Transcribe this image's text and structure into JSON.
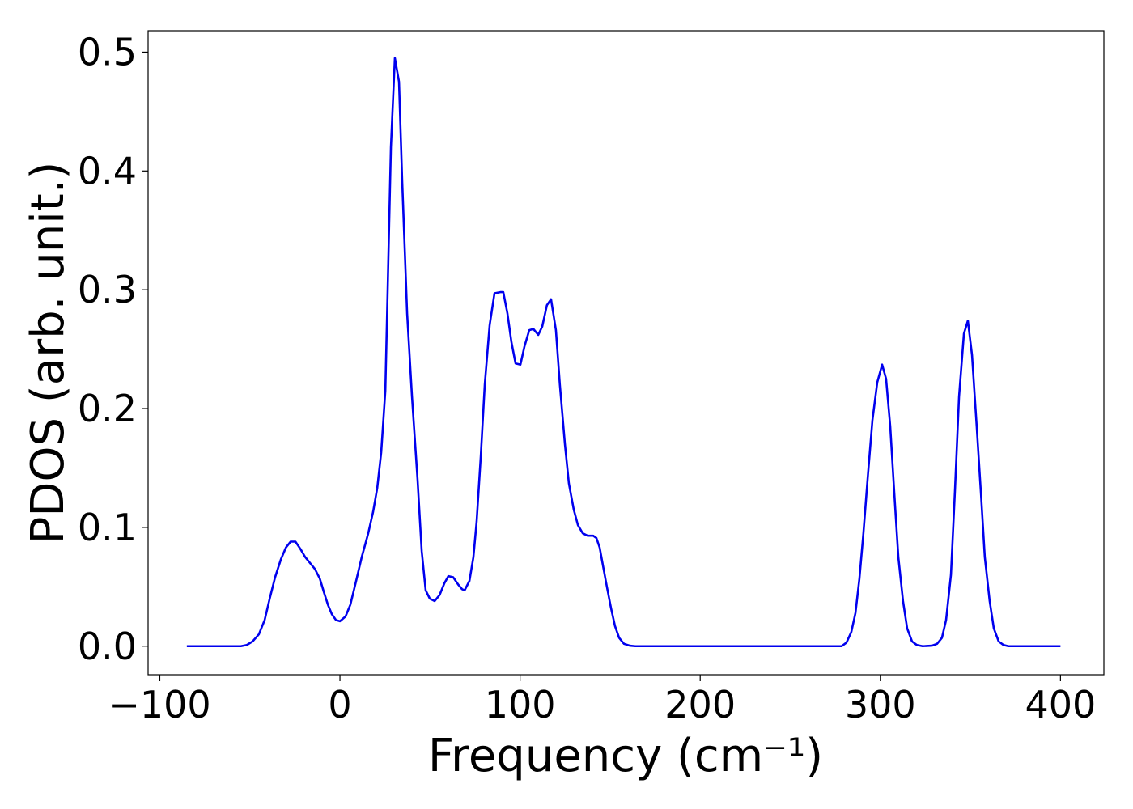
{
  "chart_data": {
    "type": "line",
    "xlabel": "Frequency (cm⁻¹)",
    "ylabel": "PDOS (arb. unit.)",
    "color": "#0000ee",
    "x": [
      -85,
      -70,
      -55,
      -51.7,
      -48.5,
      -45,
      -41.8,
      -39,
      -36,
      -32.8,
      -30,
      -27.4,
      -24.7,
      -22,
      -19.3,
      -16.6,
      -13.9,
      -11.2,
      -9,
      -6.7,
      -4.5,
      -2.2,
      0,
      3.1,
      5.8,
      9.0,
      12.1,
      15.7,
      18.4,
      20.7,
      22.9,
      25.2,
      26.5,
      28.3,
      30.5,
      32.8,
      34.6,
      37.3,
      40.0,
      43.1,
      45.4,
      47.6,
      49.9,
      52.6,
      55.3,
      58.0,
      60.2,
      62.9,
      65.6,
      67.8,
      69.2,
      71.9,
      74.1,
      75.9,
      78.2,
      80.4,
      83.1,
      85.8,
      89.0,
      90.7,
      93.0,
      95.2,
      97.5,
      100.2,
      102.4,
      105.1,
      107.4,
      110.1,
      112.3,
      114.9,
      117.2,
      119.9,
      122.1,
      124.9,
      127.1,
      129.8,
      132.1,
      134.8,
      137.5,
      140.6,
      142.4,
      144.2,
      146.0,
      148.2,
      150.5,
      152.7,
      155.0,
      157.7,
      160.8,
      164.0,
      200,
      250,
      278.5,
      281.2,
      283.9,
      286.2,
      288.4,
      290.6,
      292.9,
      295.6,
      298.3,
      301.0,
      303.2,
      305.5,
      307.7,
      310.0,
      312.6,
      314.9,
      317.6,
      320.3,
      323.5,
      328.8,
      331.5,
      334.2,
      336.5,
      339.2,
      341.4,
      343.7,
      346.4,
      348.6,
      350.9,
      353.5,
      355.8,
      358.0,
      360.7,
      363.0,
      365.7,
      368.4,
      371.1,
      400
    ],
    "values": [
      0,
      0,
      0,
      0.001,
      0.004,
      0.01,
      0.022,
      0.04,
      0.058,
      0.073,
      0.083,
      0.088,
      0.088,
      0.082,
      0.075,
      0.07,
      0.065,
      0.057,
      0.046,
      0.035,
      0.027,
      0.022,
      0.021,
      0.025,
      0.035,
      0.055,
      0.075,
      0.095,
      0.113,
      0.133,
      0.163,
      0.215,
      0.3,
      0.42,
      0.495,
      0.475,
      0.39,
      0.28,
      0.21,
      0.14,
      0.08,
      0.047,
      0.04,
      0.038,
      0.043,
      0.053,
      0.059,
      0.058,
      0.052,
      0.048,
      0.047,
      0.055,
      0.075,
      0.105,
      0.16,
      0.22,
      0.27,
      0.297,
      0.298,
      0.298,
      0.28,
      0.256,
      0.238,
      0.237,
      0.252,
      0.266,
      0.267,
      0.262,
      0.269,
      0.287,
      0.292,
      0.266,
      0.22,
      0.17,
      0.137,
      0.115,
      0.102,
      0.095,
      0.093,
      0.093,
      0.091,
      0.083,
      0.068,
      0.05,
      0.032,
      0.017,
      0.007,
      0.002,
      0.0005,
      0,
      0,
      0,
      0,
      0.003,
      0.012,
      0.028,
      0.057,
      0.095,
      0.14,
      0.19,
      0.222,
      0.237,
      0.225,
      0.185,
      0.13,
      0.075,
      0.038,
      0.015,
      0.004,
      0.001,
      0,
      0.0005,
      0.002,
      0.007,
      0.022,
      0.06,
      0.13,
      0.21,
      0.263,
      0.274,
      0.245,
      0.185,
      0.13,
      0.075,
      0.038,
      0.015,
      0.004,
      0.001,
      0,
      0
    ],
    "xlim": [
      -106.5,
      424.1
    ],
    "ylim": [
      -0.024,
      0.518
    ],
    "xticks": [
      {
        "value": -100,
        "label": "−100"
      },
      0,
      100,
      200,
      300,
      400
    ],
    "yticks": [
      {
        "value": 0,
        "label": "0.0"
      },
      0.1,
      0.2,
      0.3,
      0.4,
      0.5
    ]
  }
}
